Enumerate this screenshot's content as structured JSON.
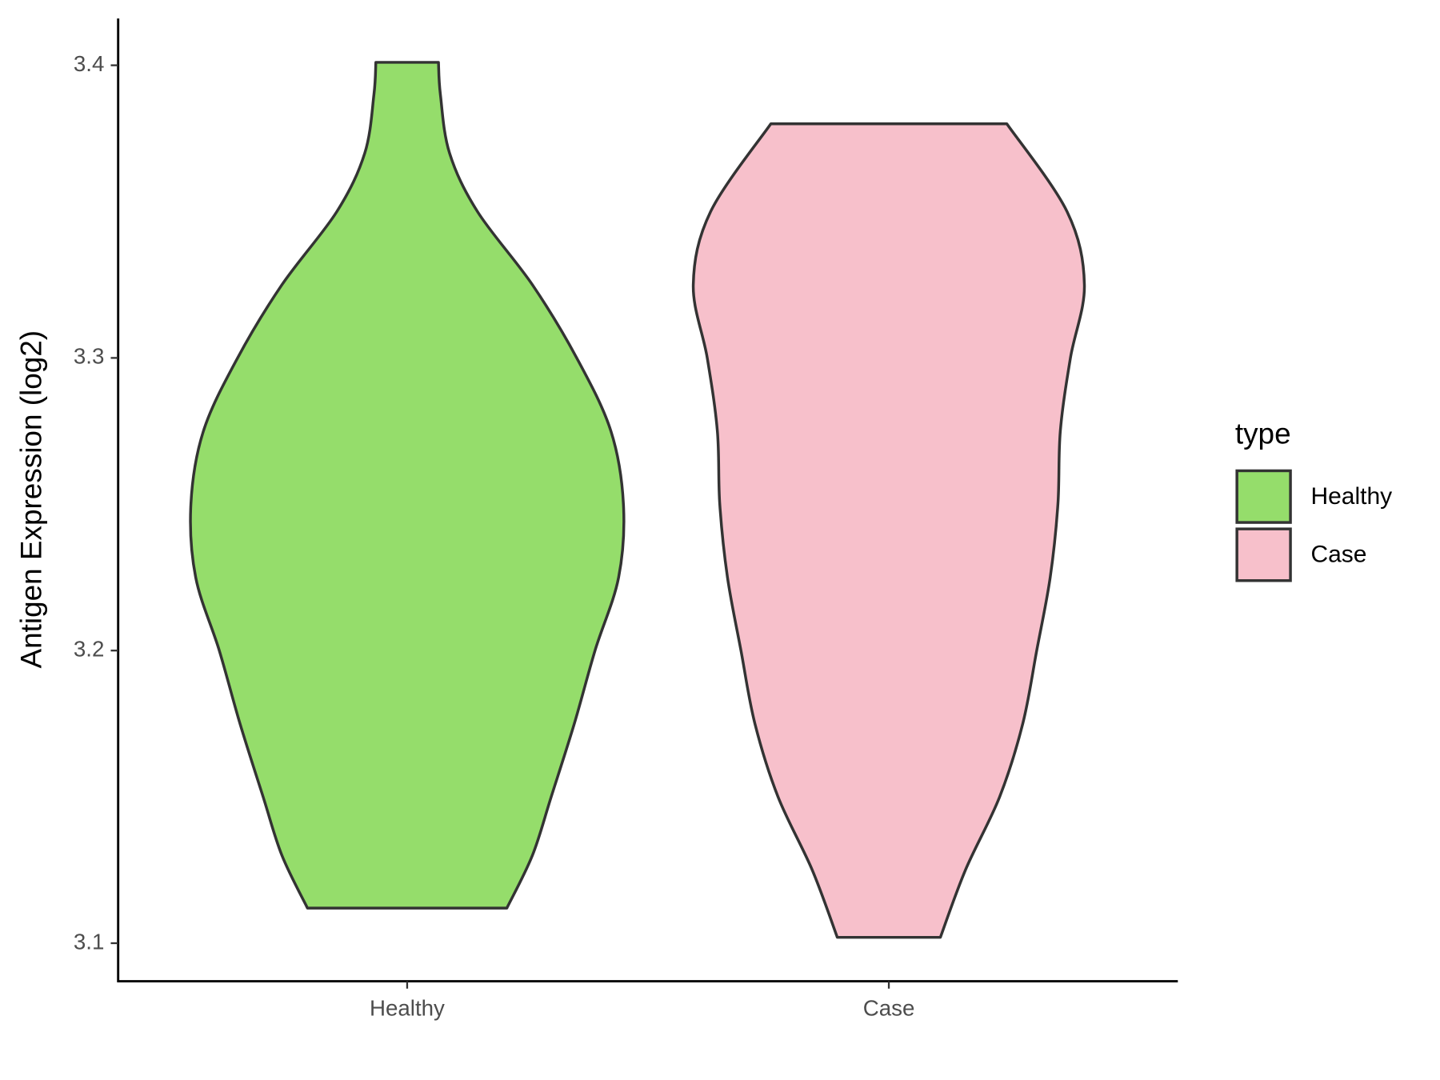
{
  "chart_data": {
    "type": "violin",
    "y_label": "Antigen Expression (log2)",
    "categories": [
      "Healthy",
      "Case"
    ],
    "legend_title": "type",
    "legend": "right",
    "ylim": [
      3.087,
      3.416
    ],
    "yticks": [
      3.1,
      3.2,
      3.3,
      3.4
    ],
    "series": [
      {
        "name": "Healthy",
        "color": "#95dd6b",
        "y": [
          3.112,
          3.13,
          3.15,
          3.175,
          3.2,
          3.225,
          3.25,
          3.275,
          3.3,
          3.325,
          3.35,
          3.37,
          3.39,
          3.401
        ],
        "half_width": [
          0.207,
          0.26,
          0.299,
          0.347,
          0.39,
          0.439,
          0.449,
          0.423,
          0.352,
          0.26,
          0.146,
          0.088,
          0.069,
          0.065
        ]
      },
      {
        "name": "Case",
        "color": "#f7c0cb",
        "y": [
          3.102,
          3.125,
          3.15,
          3.175,
          3.2,
          3.225,
          3.25,
          3.275,
          3.3,
          3.325,
          3.35,
          3.38
        ],
        "half_width": [
          0.107,
          0.159,
          0.23,
          0.278,
          0.307,
          0.335,
          0.351,
          0.356,
          0.377,
          0.406,
          0.37,
          0.245
        ]
      }
    ]
  }
}
